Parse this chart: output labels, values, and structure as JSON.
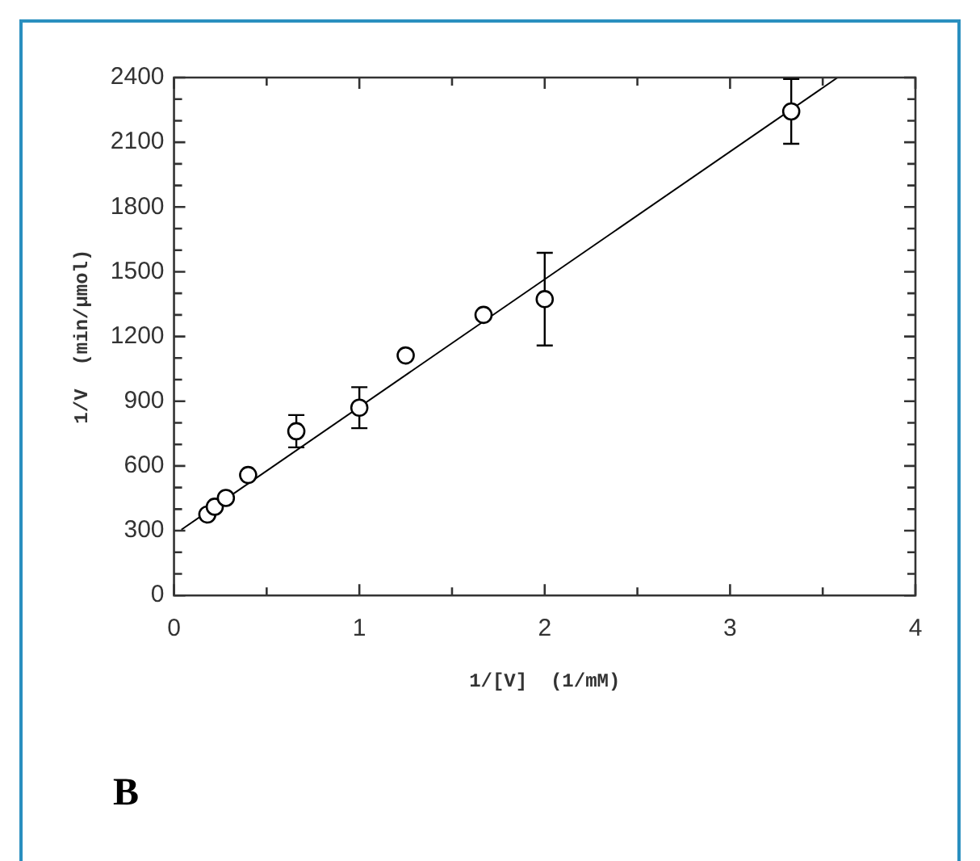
{
  "chart_data": {
    "type": "scatter",
    "xlabel": "1/[V]  (1/mM)",
    "ylabel": "1/V  (min/µmol)",
    "annotations": [
      "B"
    ],
    "xlim": [
      0,
      4
    ],
    "xticks": [
      0,
      {
        "value": 0.5,
        "label": null
      },
      1,
      {
        "value": 1.5,
        "label": null
      },
      2,
      {
        "value": 2.5,
        "label": null
      },
      3,
      {
        "value": 3.5,
        "label": null
      },
      4
    ],
    "ylim": [
      0,
      2400
    ],
    "yticks": [
      0,
      {
        "value": 100,
        "label": null
      },
      {
        "value": 200,
        "label": null
      },
      300,
      {
        "value": 400,
        "label": null
      },
      {
        "value": 500,
        "label": null
      },
      600,
      {
        "value": 700,
        "label": null
      },
      {
        "value": 800,
        "label": null
      },
      900,
      {
        "value": 1000,
        "label": null
      },
      {
        "value": 1100,
        "label": null
      },
      1200,
      {
        "value": 1300,
        "label": null
      },
      {
        "value": 1400,
        "label": null
      },
      1500,
      {
        "value": 1600,
        "label": null
      },
      {
        "value": 1700,
        "label": null
      },
      1800,
      {
        "value": 1900,
        "label": null
      },
      {
        "value": 2000,
        "label": null
      },
      2100,
      {
        "value": 2200,
        "label": null
      },
      {
        "value": 2300,
        "label": null
      },
      2400
    ],
    "grid": false,
    "legend": false,
    "marker": "circle",
    "series": [
      {
        "type": "scatter",
        "color": "#000000",
        "x": [
          0.18,
          0.22,
          0.28,
          0.4,
          0.66,
          1,
          1.25,
          1.67,
          2,
          3.33
        ],
        "values": [
          375,
          411,
          452,
          558,
          761,
          870,
          1112,
          1300,
          1373,
          2243
        ],
        "errors": [
          null,
          null,
          null,
          null,
          75,
          95,
          null,
          null,
          215,
          150
        ]
      },
      {
        "type": "line",
        "color": "#000000",
        "marker": "none",
        "x": [
          0.04,
          3.58
        ],
        "values": [
          305,
          2400
        ]
      }
    ]
  }
}
